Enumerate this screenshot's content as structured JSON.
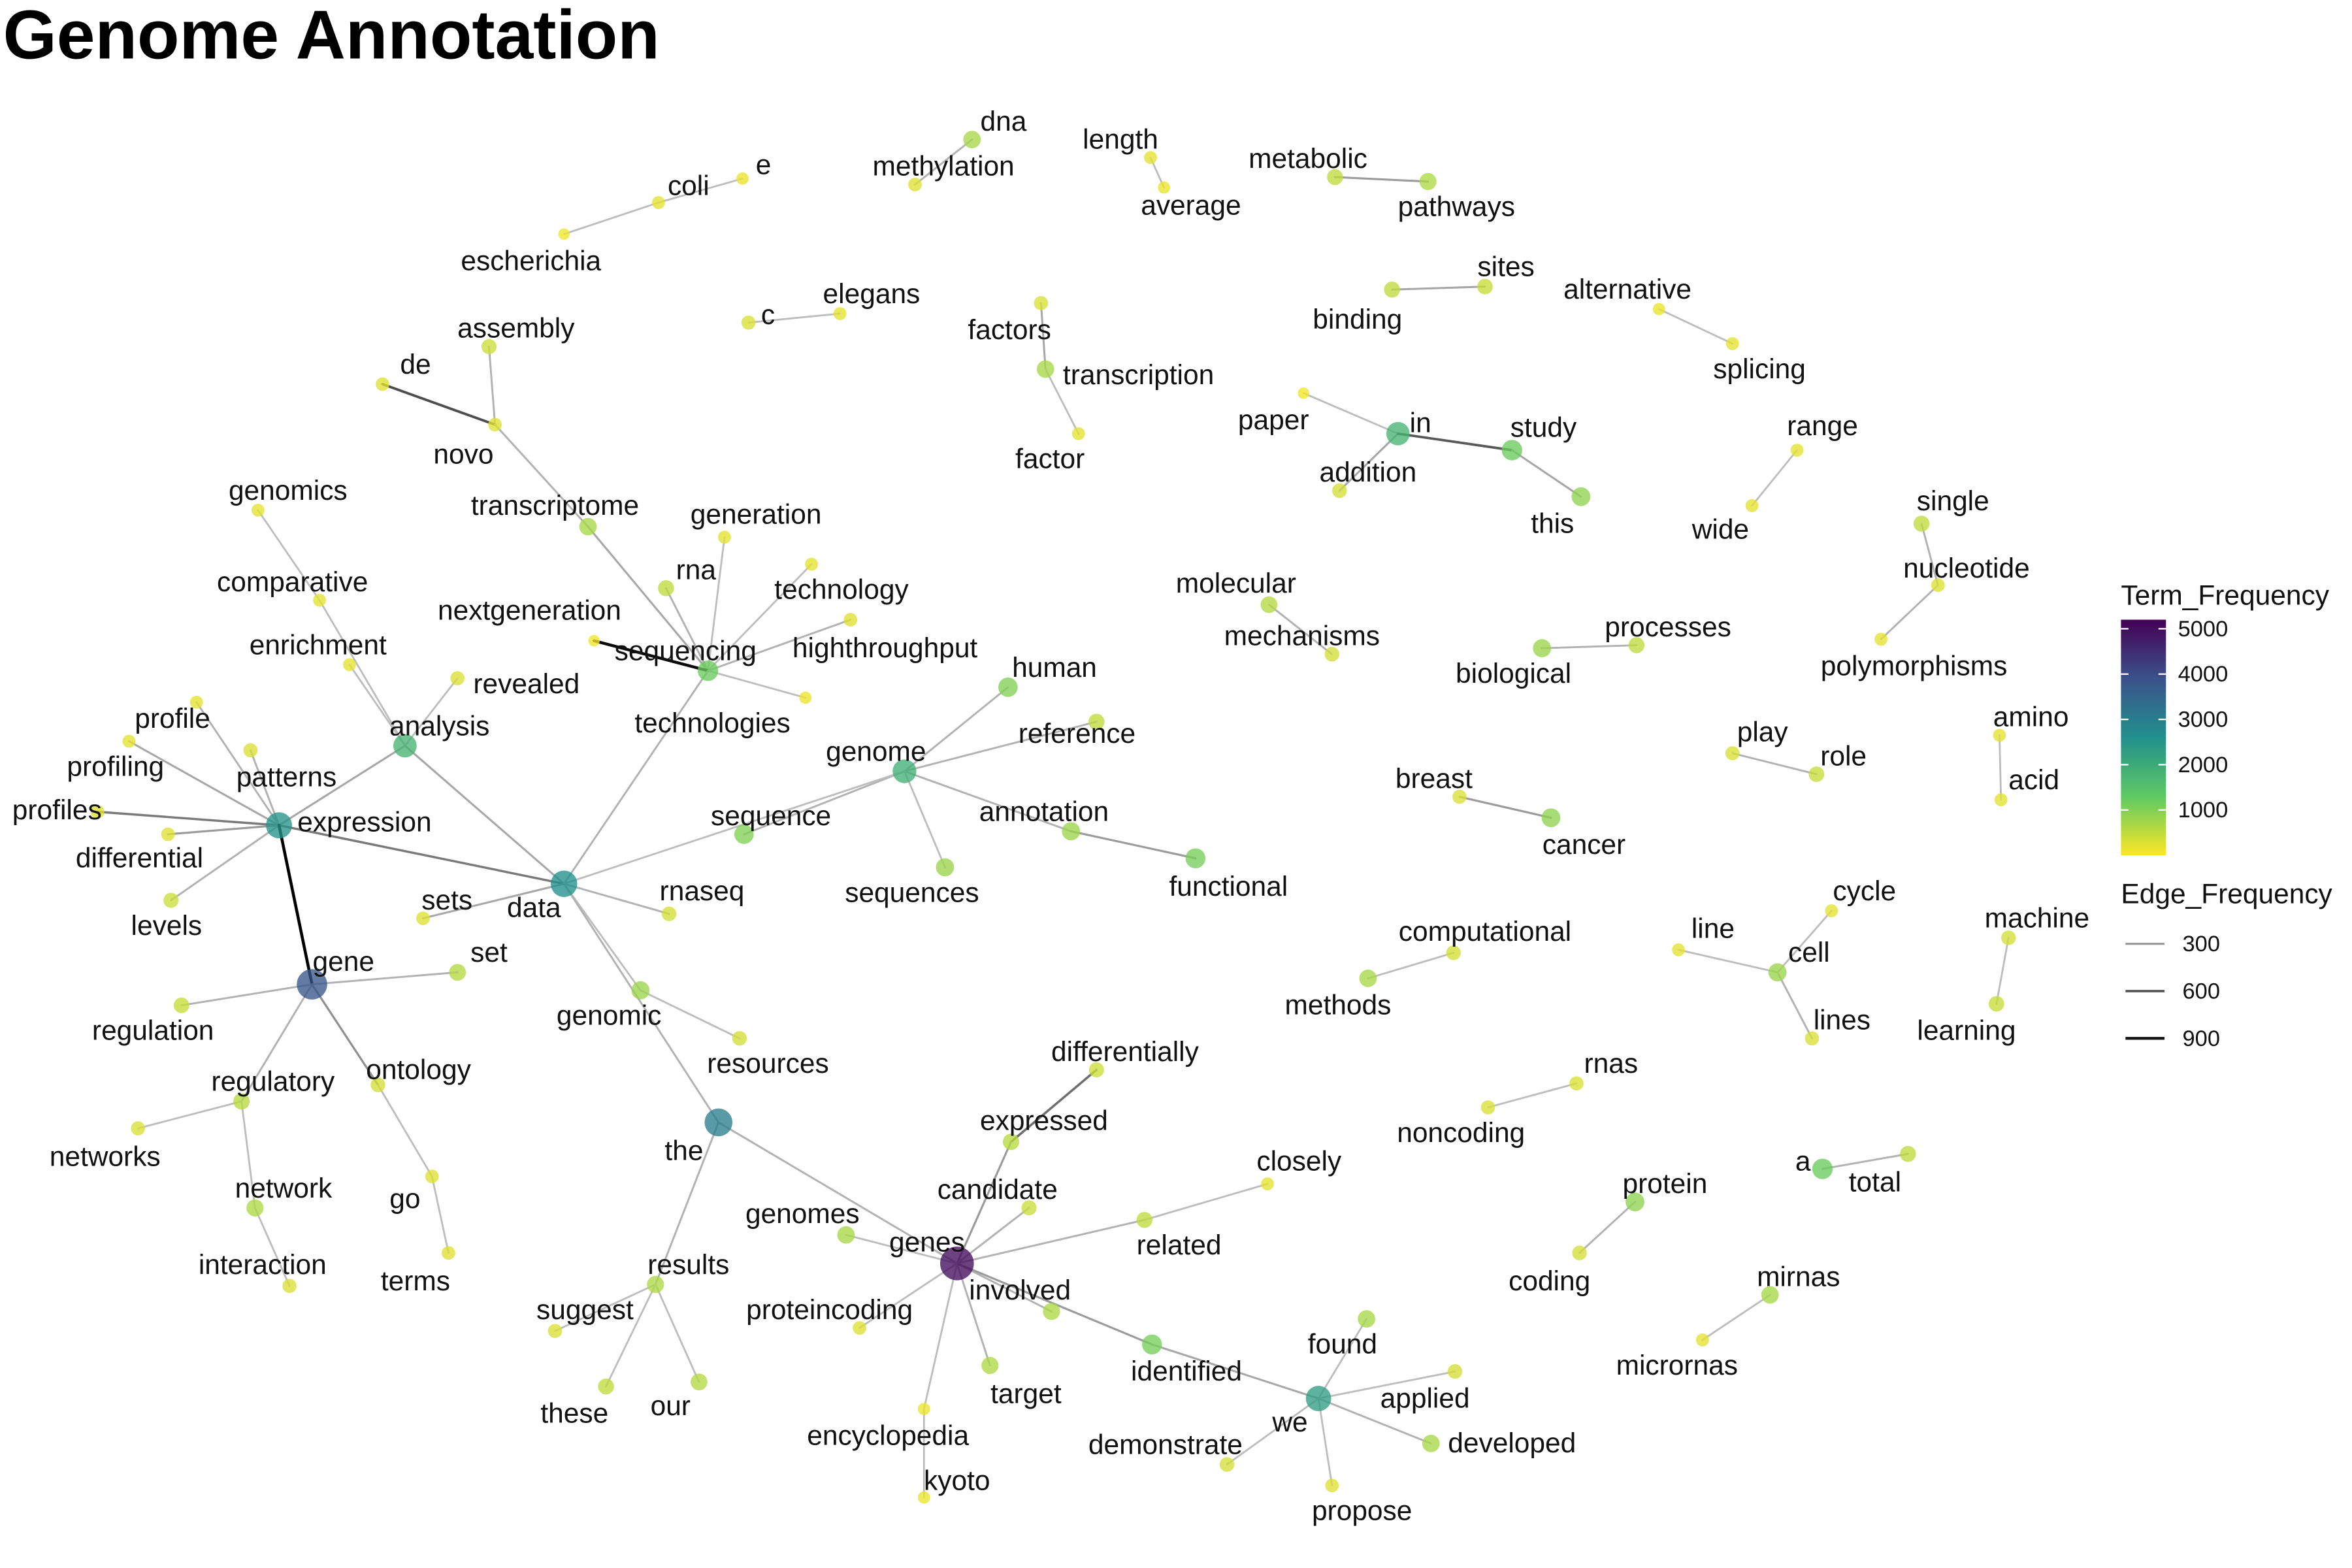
{
  "title": "Genome Annotation",
  "legend": {
    "term_frequency": {
      "title": "Term_Frequency",
      "ticks": [
        "5000",
        "4000",
        "3000",
        "2000",
        "1000"
      ],
      "tick_values": [
        5000,
        4000,
        3000,
        2000,
        1000
      ],
      "scale_max": 5200,
      "colors": [
        "#440154",
        "#3b528b",
        "#21908c",
        "#5dc963",
        "#fde725"
      ]
    },
    "edge_frequency": {
      "title": "Edge_Frequency",
      "items": [
        {
          "label": "300",
          "value": 300
        },
        {
          "label": "600",
          "value": 600
        },
        {
          "label": "900",
          "value": 900
        }
      ]
    }
  },
  "nodes": [
    {
      "id": "escherichia",
      "label": "escherichia",
      "freq": 100
    },
    {
      "id": "coli",
      "label": "coli",
      "freq": 200
    },
    {
      "id": "e",
      "label": "e",
      "freq": 150
    },
    {
      "id": "dna",
      "label": "dna",
      "freq": 700
    },
    {
      "id": "methylation",
      "label": "methylation",
      "freq": 250
    },
    {
      "id": "length",
      "label": "length",
      "freq": 200
    },
    {
      "id": "average",
      "label": "average",
      "freq": 150
    },
    {
      "id": "metabolic",
      "label": "metabolic",
      "freq": 500
    },
    {
      "id": "pathways",
      "label": "pathways",
      "freq": 650
    },
    {
      "id": "c",
      "label": "c",
      "freq": 300
    },
    {
      "id": "elegans",
      "label": "elegans",
      "freq": 200
    },
    {
      "id": "assembly",
      "label": "assembly",
      "freq": 400
    },
    {
      "id": "de",
      "label": "de",
      "freq": 250
    },
    {
      "id": "novo",
      "label": "novo",
      "freq": 250
    },
    {
      "id": "factors",
      "label": "factors",
      "freq": 300
    },
    {
      "id": "transcription",
      "label": "transcription",
      "freq": 700
    },
    {
      "id": "factor",
      "label": "factor",
      "freq": 200
    },
    {
      "id": "binding",
      "label": "binding",
      "freq": 500
    },
    {
      "id": "sites",
      "label": "sites",
      "freq": 450
    },
    {
      "id": "alternative",
      "label": "alternative",
      "freq": 150
    },
    {
      "id": "splicing",
      "label": "splicing",
      "freq": 200
    },
    {
      "id": "paper",
      "label": "paper",
      "freq": 100
    },
    {
      "id": "in",
      "label": "in",
      "freq": 1800
    },
    {
      "id": "study",
      "label": "study",
      "freq": 1200
    },
    {
      "id": "addition",
      "label": "addition",
      "freq": 350
    },
    {
      "id": "this",
      "label": "this",
      "freq": 900
    },
    {
      "id": "range",
      "label": "range",
      "freq": 200
    },
    {
      "id": "wide",
      "label": "wide",
      "freq": 200
    },
    {
      "id": "transcriptome",
      "label": "transcriptome",
      "freq": 700
    },
    {
      "id": "genomics",
      "label": "genomics",
      "freq": 200
    },
    {
      "id": "comparative",
      "label": "comparative",
      "freq": 200
    },
    {
      "id": "generation",
      "label": "generation",
      "freq": 200
    },
    {
      "id": "rna",
      "label": "rna",
      "freq": 500
    },
    {
      "id": "technology",
      "label": "technology",
      "freq": 200
    },
    {
      "id": "nextgeneration",
      "label": "nextgeneration",
      "freq": 100
    },
    {
      "id": "sequencing",
      "label": "sequencing",
      "freq": 1200
    },
    {
      "id": "highthroughput",
      "label": "highthroughput",
      "freq": 250
    },
    {
      "id": "technologies",
      "label": "technologies",
      "freq": 150
    },
    {
      "id": "enrichment",
      "label": "enrichment",
      "freq": 200
    },
    {
      "id": "revealed",
      "label": "revealed",
      "freq": 300
    },
    {
      "id": "analysis",
      "label": "analysis",
      "freq": 1800
    },
    {
      "id": "profile",
      "label": "profile",
      "freq": 200
    },
    {
      "id": "profiling",
      "label": "profiling",
      "freq": 200
    },
    {
      "id": "patterns",
      "label": "patterns",
      "freq": 300
    },
    {
      "id": "profiles",
      "label": "profiles",
      "freq": 250
    },
    {
      "id": "expression",
      "label": "expression",
      "freq": 2500
    },
    {
      "id": "differential",
      "label": "differential",
      "freq": 250
    },
    {
      "id": "levels",
      "label": "levels",
      "freq": 400
    },
    {
      "id": "human",
      "label": "human",
      "freq": 1000
    },
    {
      "id": "reference",
      "label": "reference",
      "freq": 500
    },
    {
      "id": "genome",
      "label": "genome",
      "freq": 1900
    },
    {
      "id": "annotation",
      "label": "annotation",
      "freq": 800
    },
    {
      "id": "functional",
      "label": "functional",
      "freq": 1100
    },
    {
      "id": "sequence",
      "label": "sequence",
      "freq": 1000
    },
    {
      "id": "sequences",
      "label": "sequences",
      "freq": 800
    },
    {
      "id": "data",
      "label": "data",
      "freq": 2600
    },
    {
      "id": "rnaseq",
      "label": "rnaseq",
      "freq": 350
    },
    {
      "id": "sets",
      "label": "sets",
      "freq": 250
    },
    {
      "id": "set",
      "label": "set",
      "freq": 600
    },
    {
      "id": "gene",
      "label": "gene",
      "freq": 3800
    },
    {
      "id": "regulation",
      "label": "regulation",
      "freq": 450
    },
    {
      "id": "genomic",
      "label": "genomic",
      "freq": 800
    },
    {
      "id": "resources",
      "label": "resources",
      "freq": 350
    },
    {
      "id": "regulatory",
      "label": "regulatory",
      "freq": 550
    },
    {
      "id": "ontology",
      "label": "ontology",
      "freq": 350
    },
    {
      "id": "networks",
      "label": "networks",
      "freq": 300
    },
    {
      "id": "network",
      "label": "network",
      "freq": 650
    },
    {
      "id": "go",
      "label": "go",
      "freq": 250
    },
    {
      "id": "interaction",
      "label": "interaction",
      "freq": 300
    },
    {
      "id": "terms",
      "label": "terms",
      "freq": 250
    },
    {
      "id": "molecular",
      "label": "molecular",
      "freq": 600
    },
    {
      "id": "mechanisms",
      "label": "mechanisms",
      "freq": 350
    },
    {
      "id": "biological",
      "label": "biological",
      "freq": 800
    },
    {
      "id": "processes",
      "label": "processes",
      "freq": 500
    },
    {
      "id": "single",
      "label": "single",
      "freq": 500
    },
    {
      "id": "nucleotide",
      "label": "nucleotide",
      "freq": 250
    },
    {
      "id": "polymorphisms",
      "label": "polymorphisms",
      "freq": 200
    },
    {
      "id": "play",
      "label": "play",
      "freq": 300
    },
    {
      "id": "role",
      "label": "role",
      "freq": 450
    },
    {
      "id": "amino",
      "label": "amino",
      "freq": 200
    },
    {
      "id": "acid",
      "label": "acid",
      "freq": 200
    },
    {
      "id": "breast",
      "label": "breast",
      "freq": 300
    },
    {
      "id": "cancer",
      "label": "cancer",
      "freq": 900
    },
    {
      "id": "computational",
      "label": "computational",
      "freq": 350
    },
    {
      "id": "methods",
      "label": "methods",
      "freq": 700
    },
    {
      "id": "line",
      "label": "line",
      "freq": 200
    },
    {
      "id": "cell",
      "label": "cell",
      "freq": 800
    },
    {
      "id": "cycle",
      "label": "cycle",
      "freq": 200
    },
    {
      "id": "lines",
      "label": "lines",
      "freq": 300
    },
    {
      "id": "machine",
      "label": "machine",
      "freq": 350
    },
    {
      "id": "learning",
      "label": "learning",
      "freq": 450
    },
    {
      "id": "differentially",
      "label": "differentially",
      "freq": 400
    },
    {
      "id": "expressed",
      "label": "expressed",
      "freq": 550
    },
    {
      "id": "the",
      "label": "the",
      "freq": 3000
    },
    {
      "id": "closely",
      "label": "closely",
      "freq": 200
    },
    {
      "id": "candidate",
      "label": "candidate",
      "freq": 400
    },
    {
      "id": "genomes",
      "label": "genomes",
      "freq": 700
    },
    {
      "id": "related",
      "label": "related",
      "freq": 500
    },
    {
      "id": "results",
      "label": "results",
      "freq": 650
    },
    {
      "id": "genes",
      "label": "genes",
      "freq": 5000
    },
    {
      "id": "involved",
      "label": "involved",
      "freq": 650
    },
    {
      "id": "suggest",
      "label": "suggest",
      "freq": 300
    },
    {
      "id": "proteincoding",
      "label": "proteincoding",
      "freq": 250
    },
    {
      "id": "these",
      "label": "these",
      "freq": 500
    },
    {
      "id": "our",
      "label": "our",
      "freq": 600
    },
    {
      "id": "target",
      "label": "target",
      "freq": 650
    },
    {
      "id": "identified",
      "label": "identified",
      "freq": 1100
    },
    {
      "id": "encyclopedia",
      "label": "encyclopedia",
      "freq": 150
    },
    {
      "id": "kyoto",
      "label": "kyoto",
      "freq": 150
    },
    {
      "id": "found",
      "label": "found",
      "freq": 700
    },
    {
      "id": "applied",
      "label": "applied",
      "freq": 350
    },
    {
      "id": "we",
      "label": "we",
      "freq": 2300
    },
    {
      "id": "demonstrate",
      "label": "demonstrate",
      "freq": 350
    },
    {
      "id": "developed",
      "label": "developed",
      "freq": 700
    },
    {
      "id": "propose",
      "label": "propose",
      "freq": 250
    },
    {
      "id": "noncoding",
      "label": "noncoding",
      "freq": 300
    },
    {
      "id": "rnas",
      "label": "rnas",
      "freq": 300
    },
    {
      "id": "a",
      "label": "a",
      "freq": 1200
    },
    {
      "id": "total",
      "label": "total",
      "freq": 500
    },
    {
      "id": "protein",
      "label": "protein",
      "freq": 900
    },
    {
      "id": "coding",
      "label": "coding",
      "freq": 350
    },
    {
      "id": "mirnas",
      "label": "mirnas",
      "freq": 700
    },
    {
      "id": "micrornas",
      "label": "micrornas",
      "freq": 200
    }
  ],
  "edges": [
    {
      "from": "escherichia",
      "to": "coli",
      "freq": 150
    },
    {
      "from": "coli",
      "to": "e",
      "freq": 150
    },
    {
      "from": "dna",
      "to": "methylation",
      "freq": 200
    },
    {
      "from": "length",
      "to": "average",
      "freq": 150
    },
    {
      "from": "metabolic",
      "to": "pathways",
      "freq": 300
    },
    {
      "from": "c",
      "to": "elegans",
      "freq": 150
    },
    {
      "from": "assembly",
      "to": "novo",
      "freq": 200
    },
    {
      "from": "de",
      "to": "novo",
      "freq": 650
    },
    {
      "from": "novo",
      "to": "transcriptome",
      "freq": 200
    },
    {
      "from": "factors",
      "to": "transcription",
      "freq": 250
    },
    {
      "from": "transcription",
      "to": "factor",
      "freq": 150
    },
    {
      "from": "binding",
      "to": "sites",
      "freq": 250
    },
    {
      "from": "alternative",
      "to": "splicing",
      "freq": 150
    },
    {
      "from": "paper",
      "to": "in",
      "freq": 150
    },
    {
      "from": "in",
      "to": "addition",
      "freq": 250
    },
    {
      "from": "in",
      "to": "study",
      "freq": 600
    },
    {
      "from": "study",
      "to": "this",
      "freq": 250
    },
    {
      "from": "range",
      "to": "wide",
      "freq": 150
    },
    {
      "from": "transcriptome",
      "to": "sequencing",
      "freq": 250
    },
    {
      "from": "genomics",
      "to": "comparative",
      "freq": 150
    },
    {
      "from": "comparative",
      "to": "analysis",
      "freq": 150
    },
    {
      "from": "generation",
      "to": "sequencing",
      "freq": 150
    },
    {
      "from": "rna",
      "to": "sequencing",
      "freq": 200
    },
    {
      "from": "technology",
      "to": "sequencing",
      "freq": 150
    },
    {
      "from": "nextgeneration",
      "to": "sequencing",
      "freq": 950
    },
    {
      "from": "highthroughput",
      "to": "sequencing",
      "freq": 200
    },
    {
      "from": "technologies",
      "to": "sequencing",
      "freq": 150
    },
    {
      "from": "sequencing",
      "to": "data",
      "freq": 200
    },
    {
      "from": "enrichment",
      "to": "analysis",
      "freq": 150
    },
    {
      "from": "revealed",
      "to": "analysis",
      "freq": 150
    },
    {
      "from": "analysis",
      "to": "expression",
      "freq": 250
    },
    {
      "from": "analysis",
      "to": "data",
      "freq": 250
    },
    {
      "from": "profile",
      "to": "expression",
      "freq": 200
    },
    {
      "from": "profiling",
      "to": "expression",
      "freq": 250
    },
    {
      "from": "patterns",
      "to": "expression",
      "freq": 200
    },
    {
      "from": "profiles",
      "to": "expression",
      "freq": 450
    },
    {
      "from": "differential",
      "to": "expression",
      "freq": 300
    },
    {
      "from": "levels",
      "to": "expression",
      "freq": 200
    },
    {
      "from": "expression",
      "to": "data",
      "freq": 450
    },
    {
      "from": "expression",
      "to": "gene",
      "freq": 1000
    },
    {
      "from": "human",
      "to": "genome",
      "freq": 200
    },
    {
      "from": "reference",
      "to": "genome",
      "freq": 200
    },
    {
      "from": "genome",
      "to": "annotation",
      "freq": 200
    },
    {
      "from": "genome",
      "to": "sequence",
      "freq": 200
    },
    {
      "from": "genome",
      "to": "sequences",
      "freq": 150
    },
    {
      "from": "genome",
      "to": "data",
      "freq": 150
    },
    {
      "from": "annotation",
      "to": "functional",
      "freq": 300
    },
    {
      "from": "data",
      "to": "rnaseq",
      "freq": 200
    },
    {
      "from": "data",
      "to": "sets",
      "freq": 250
    },
    {
      "from": "data",
      "to": "genomic",
      "freq": 150
    },
    {
      "from": "data",
      "to": "the",
      "freq": 200
    },
    {
      "from": "gene",
      "to": "set",
      "freq": 200
    },
    {
      "from": "gene",
      "to": "regulation",
      "freq": 200
    },
    {
      "from": "gene",
      "to": "regulatory",
      "freq": 200
    },
    {
      "from": "gene",
      "to": "ontology",
      "freq": 350
    },
    {
      "from": "genomic",
      "to": "resources",
      "freq": 150
    },
    {
      "from": "regulatory",
      "to": "networks",
      "freq": 150
    },
    {
      "from": "regulatory",
      "to": "network",
      "freq": 150
    },
    {
      "from": "network",
      "to": "interaction",
      "freq": 150
    },
    {
      "from": "ontology",
      "to": "go",
      "freq": 150
    },
    {
      "from": "go",
      "to": "terms",
      "freq": 150
    },
    {
      "from": "molecular",
      "to": "mechanisms",
      "freq": 200
    },
    {
      "from": "biological",
      "to": "processes",
      "freq": 200
    },
    {
      "from": "single",
      "to": "nucleotide",
      "freq": 200
    },
    {
      "from": "nucleotide",
      "to": "polymorphisms",
      "freq": 200
    },
    {
      "from": "play",
      "to": "role",
      "freq": 200
    },
    {
      "from": "amino",
      "to": "acid",
      "freq": 150
    },
    {
      "from": "breast",
      "to": "cancer",
      "freq": 300
    },
    {
      "from": "computational",
      "to": "methods",
      "freq": 150
    },
    {
      "from": "line",
      "to": "cell",
      "freq": 150
    },
    {
      "from": "cell",
      "to": "cycle",
      "freq": 150
    },
    {
      "from": "cell",
      "to": "lines",
      "freq": 200
    },
    {
      "from": "machine",
      "to": "learning",
      "freq": 150
    },
    {
      "from": "differentially",
      "to": "expressed",
      "freq": 500
    },
    {
      "from": "expressed",
      "to": "genes",
      "freq": 300
    },
    {
      "from": "the",
      "to": "results",
      "freq": 200
    },
    {
      "from": "the",
      "to": "genes",
      "freq": 200
    },
    {
      "from": "results",
      "to": "suggest",
      "freq": 150
    },
    {
      "from": "results",
      "to": "these",
      "freq": 150
    },
    {
      "from": "results",
      "to": "our",
      "freq": 150
    },
    {
      "from": "candidate",
      "to": "genes",
      "freq": 200
    },
    {
      "from": "closely",
      "to": "related",
      "freq": 150
    },
    {
      "from": "related",
      "to": "genes",
      "freq": 200
    },
    {
      "from": "genomes",
      "to": "genes",
      "freq": 150
    },
    {
      "from": "genes",
      "to": "involved",
      "freq": 200
    },
    {
      "from": "genes",
      "to": "proteincoding",
      "freq": 150
    },
    {
      "from": "genes",
      "to": "target",
      "freq": 200
    },
    {
      "from": "genes",
      "to": "identified",
      "freq": 300
    },
    {
      "from": "genes",
      "to": "encyclopedia",
      "freq": 150
    },
    {
      "from": "encyclopedia",
      "to": "kyoto",
      "freq": 150
    },
    {
      "from": "identified",
      "to": "we",
      "freq": 250
    },
    {
      "from": "we",
      "to": "found",
      "freq": 150
    },
    {
      "from": "we",
      "to": "applied",
      "freq": 150
    },
    {
      "from": "we",
      "to": "demonstrate",
      "freq": 150
    },
    {
      "from": "we",
      "to": "developed",
      "freq": 200
    },
    {
      "from": "we",
      "to": "propose",
      "freq": 150
    },
    {
      "from": "noncoding",
      "to": "rnas",
      "freq": 150
    },
    {
      "from": "a",
      "to": "total",
      "freq": 200
    },
    {
      "from": "protein",
      "to": "coding",
      "freq": 200
    },
    {
      "from": "mirnas",
      "to": "micrornas",
      "freq": 150
    }
  ]
}
